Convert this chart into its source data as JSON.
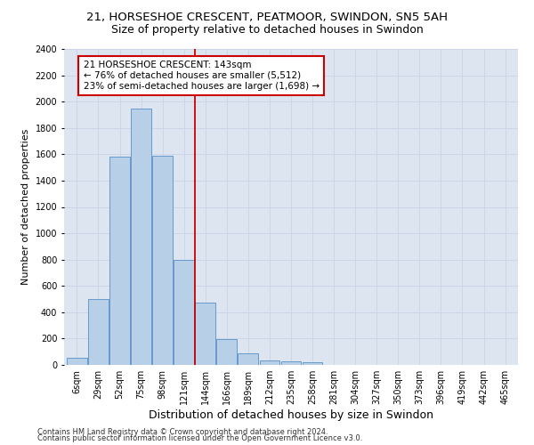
{
  "title": "21, HORSESHOE CRESCENT, PEATMOOR, SWINDON, SN5 5AH",
  "subtitle": "Size of property relative to detached houses in Swindon",
  "xlabel": "Distribution of detached houses by size in Swindon",
  "ylabel": "Number of detached properties",
  "footer1": "Contains HM Land Registry data © Crown copyright and database right 2024.",
  "footer2": "Contains public sector information licensed under the Open Government Licence v3.0.",
  "annotation_line1": "21 HORSESHOE CRESCENT: 143sqm",
  "annotation_line2": "← 76% of detached houses are smaller (5,512)",
  "annotation_line3": "23% of semi-detached houses are larger (1,698) →",
  "bar_categories": [
    "6sqm",
    "29sqm",
    "52sqm",
    "75sqm",
    "98sqm",
    "121sqm",
    "144sqm",
    "166sqm",
    "189sqm",
    "212sqm",
    "235sqm",
    "258sqm",
    "281sqm",
    "304sqm",
    "327sqm",
    "350sqm",
    "373sqm",
    "396sqm",
    "419sqm",
    "442sqm",
    "465sqm"
  ],
  "bar_values": [
    55,
    500,
    1580,
    1950,
    1590,
    800,
    475,
    195,
    90,
    35,
    25,
    20,
    0,
    0,
    0,
    0,
    0,
    0,
    0,
    0,
    0
  ],
  "bar_color": "#b8cfe8",
  "bar_edge_color": "#6699cc",
  "vline_color": "#cc0000",
  "vline_x_index": 5,
  "ylim": [
    0,
    2400
  ],
  "yticks": [
    0,
    200,
    400,
    600,
    800,
    1000,
    1200,
    1400,
    1600,
    1800,
    2000,
    2200,
    2400
  ],
  "grid_color": "#ccd6e8",
  "bg_color": "#dde6f0",
  "title_fontsize": 9.5,
  "subtitle_fontsize": 9,
  "xlabel_fontsize": 9,
  "ylabel_fontsize": 8,
  "tick_fontsize": 7,
  "footer_fontsize": 6,
  "annotation_fontsize": 7.5
}
